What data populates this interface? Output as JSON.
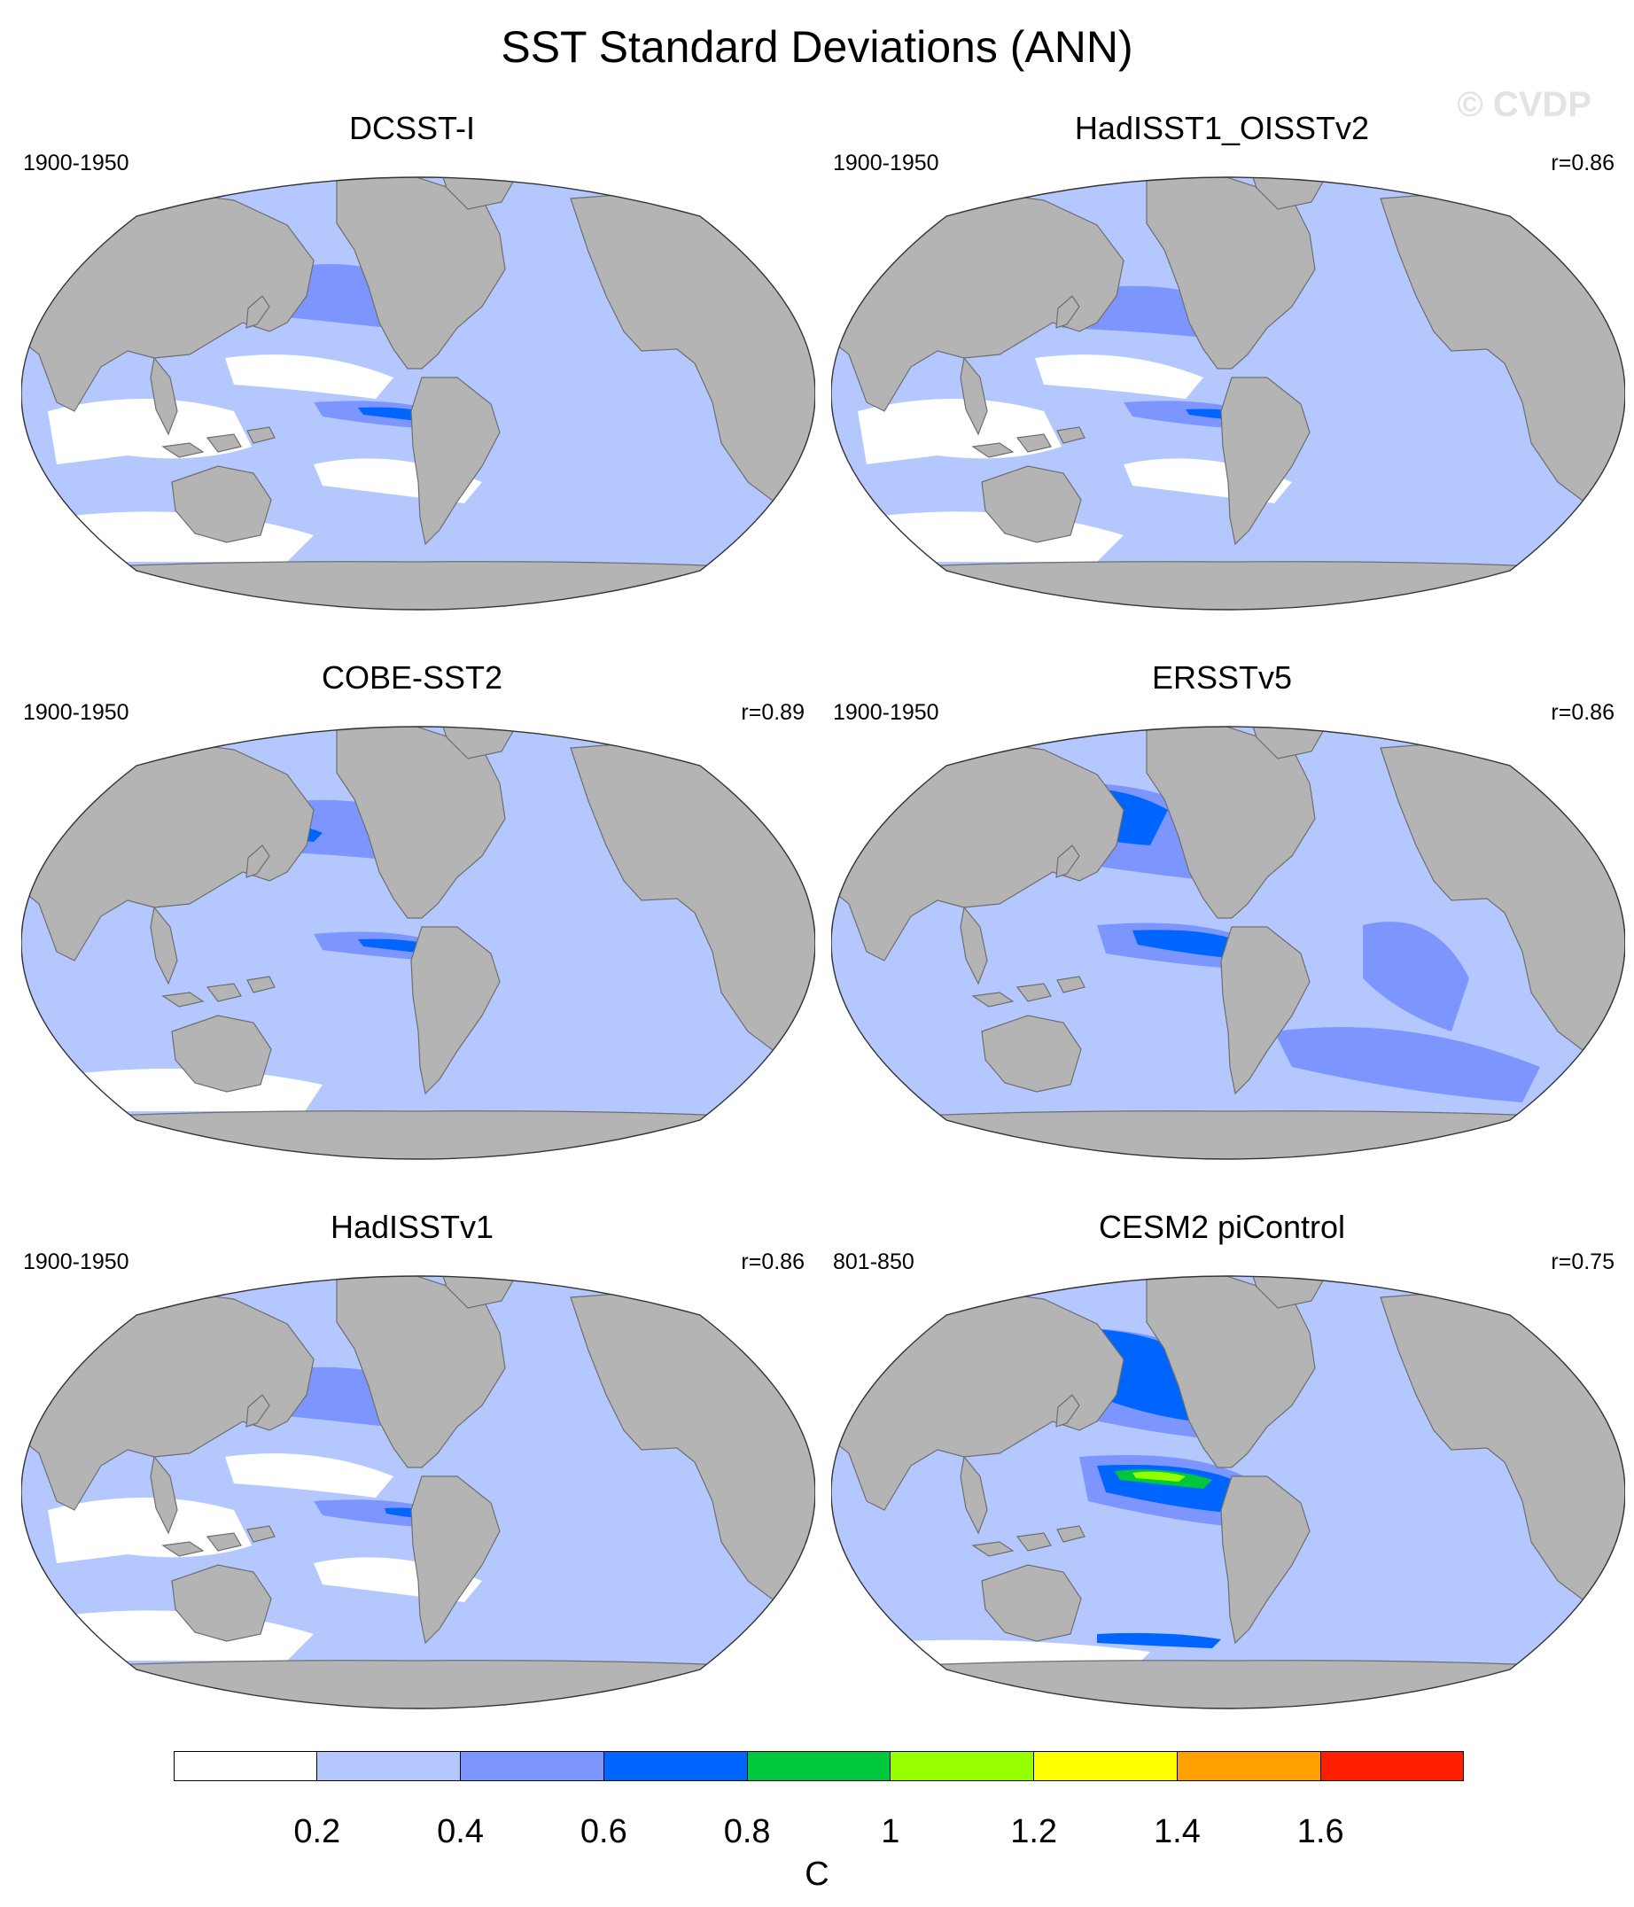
{
  "figure": {
    "title": "SST Standard Deviations (ANN)",
    "watermark": "© CVDP"
  },
  "colors": {
    "land": "#b4b4b4",
    "coast": "#6e6e6e",
    "levels": [
      "#ffffff",
      "#b4c8ff",
      "#7d96ff",
      "#0064ff",
      "#00c83c",
      "#96ff00",
      "#ffff00",
      "#ffa000",
      "#ff1e00"
    ]
  },
  "panels": [
    {
      "id": "dcsst",
      "title": "DCSST-I",
      "period": "1900-1950",
      "corr": ""
    },
    {
      "id": "hadisst-oisst",
      "title": "HadISST1_OISSTv2",
      "period": "1900-1950",
      "corr": "r=0.86"
    },
    {
      "id": "cobe",
      "title": "COBE-SST2",
      "period": "1900-1950",
      "corr": "r=0.89"
    },
    {
      "id": "ersst",
      "title": "ERSSTv5",
      "period": "1900-1950",
      "corr": "r=0.86"
    },
    {
      "id": "hadisst",
      "title": "HadISSTv1",
      "period": "1900-1950",
      "corr": "r=0.86"
    },
    {
      "id": "cesm2",
      "title": "CESM2 piControl",
      "period": "801-850",
      "corr": "r=0.75"
    }
  ],
  "colorbar": {
    "labels": [
      "0.2",
      "0.4",
      "0.6",
      "0.8",
      "1",
      "1.2",
      "1.4",
      "1.6"
    ],
    "unit": "C"
  }
}
